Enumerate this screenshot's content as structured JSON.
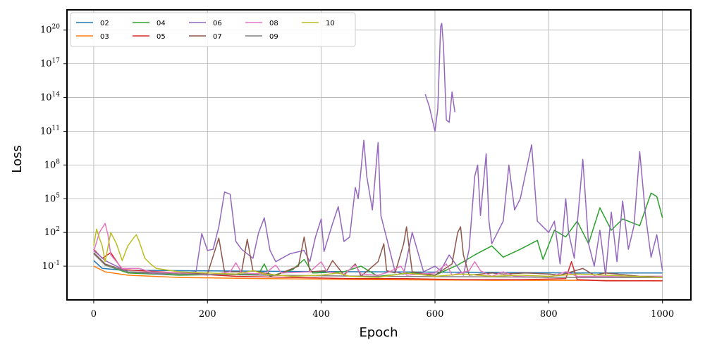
{
  "chart_data": {
    "type": "line",
    "xlabel": "Epoch",
    "ylabel": "Loss",
    "xlim": [
      -47,
      1050
    ],
    "yscale": "log",
    "ylim_log10": [
      -4.0,
      21.8
    ],
    "x_ticks": [
      0,
      200,
      400,
      600,
      800,
      1000
    ],
    "y_ticks": [
      {
        "exp": -1,
        "label": "10^{-1}"
      },
      {
        "exp": 2,
        "label": "10^{2}"
      },
      {
        "exp": 5,
        "label": "10^{5}"
      },
      {
        "exp": 8,
        "label": "10^{8}"
      },
      {
        "exp": 11,
        "label": "10^{11}"
      },
      {
        "exp": 14,
        "label": "10^{14}"
      },
      {
        "exp": 17,
        "label": "10^{17}"
      },
      {
        "exp": 20,
        "label": "10^{20}"
      }
    ],
    "grid": true,
    "legend": {
      "placement": "top-left",
      "columns": 5
    },
    "series": [
      {
        "name": "02",
        "color": "#1f77b4",
        "points": [
          [
            0,
            -0.5
          ],
          [
            15,
            -1.2
          ],
          [
            50,
            -1.35
          ],
          [
            150,
            -1.4
          ],
          [
            300,
            -1.45
          ],
          [
            500,
            -1.5
          ],
          [
            700,
            -1.55
          ],
          [
            850,
            -1.6
          ],
          [
            1000,
            -1.6
          ]
        ]
      },
      {
        "name": "03",
        "color": "#ff7f0e",
        "points": [
          [
            0,
            -1.0
          ],
          [
            20,
            -1.5
          ],
          [
            60,
            -1.8
          ],
          [
            150,
            -2.0
          ],
          [
            300,
            -2.1
          ],
          [
            500,
            -2.2
          ],
          [
            700,
            -2.25
          ],
          [
            850,
            -2.25
          ],
          [
            1000,
            -2.3
          ]
        ]
      },
      {
        "name": "04",
        "color": "#2ca02c",
        "points": [
          [
            0,
            0.2
          ],
          [
            20,
            -0.9
          ],
          [
            60,
            -1.6
          ],
          [
            150,
            -1.8
          ],
          [
            290,
            -1.7
          ],
          [
            300,
            -0.8
          ],
          [
            310,
            -1.9
          ],
          [
            350,
            -1.3
          ],
          [
            370,
            -0.4
          ],
          [
            385,
            -1.6
          ],
          [
            440,
            -1.5
          ],
          [
            470,
            -1.0
          ],
          [
            500,
            -1.9
          ],
          [
            560,
            -1.6
          ],
          [
            600,
            -1.8
          ],
          [
            640,
            -0.9
          ],
          [
            670,
            0.0
          ],
          [
            700,
            0.8
          ],
          [
            720,
            -0.2
          ],
          [
            750,
            0.5
          ],
          [
            780,
            1.3
          ],
          [
            790,
            -0.4
          ],
          [
            810,
            2.2
          ],
          [
            830,
            1.6
          ],
          [
            850,
            3.0
          ],
          [
            870,
            1.0
          ],
          [
            890,
            4.2
          ],
          [
            910,
            2.2
          ],
          [
            930,
            3.2
          ],
          [
            960,
            2.6
          ],
          [
            980,
            5.5
          ],
          [
            990,
            5.2
          ],
          [
            1000,
            3.3
          ]
        ]
      },
      {
        "name": "05",
        "color": "#d62728",
        "points": [
          [
            0,
            0.5
          ],
          [
            15,
            -0.3
          ],
          [
            30,
            0.2
          ],
          [
            50,
            -1.3
          ],
          [
            150,
            -1.6
          ],
          [
            250,
            -1.9
          ],
          [
            350,
            -2.0
          ],
          [
            450,
            -2.1
          ],
          [
            550,
            -2.1
          ],
          [
            650,
            -2.2
          ],
          [
            750,
            -2.2
          ],
          [
            830,
            -2.1
          ],
          [
            840,
            -0.6
          ],
          [
            850,
            -2.2
          ],
          [
            900,
            -2.3
          ],
          [
            1000,
            -2.3
          ]
        ]
      },
      {
        "name": "06",
        "color": "#9467bd",
        "points": [
          [
            0,
            0.4
          ],
          [
            20,
            -0.5
          ],
          [
            60,
            -1.5
          ],
          [
            120,
            -1.7
          ],
          [
            180,
            -1.5
          ],
          [
            190,
            1.9
          ],
          [
            200,
            0.4
          ],
          [
            210,
            0.5
          ],
          [
            220,
            2.5
          ],
          [
            230,
            5.6
          ],
          [
            240,
            5.4
          ],
          [
            250,
            1.2
          ],
          [
            260,
            0.5
          ],
          [
            280,
            -0.3
          ],
          [
            290,
            2.0
          ],
          [
            300,
            3.3
          ],
          [
            310,
            0.4
          ],
          [
            320,
            -0.6
          ],
          [
            345,
            0.1
          ],
          [
            370,
            0.4
          ],
          [
            380,
            -0.6
          ],
          [
            390,
            1.6
          ],
          [
            400,
            3.2
          ],
          [
            405,
            0.3
          ],
          [
            420,
            2.8
          ],
          [
            430,
            4.3
          ],
          [
            440,
            1.2
          ],
          [
            450,
            1.6
          ],
          [
            460,
            6.0
          ],
          [
            465,
            5.0
          ],
          [
            475,
            10.2
          ],
          [
            480,
            7.0
          ],
          [
            490,
            4.0
          ],
          [
            500,
            10.0
          ],
          [
            505,
            3.5
          ],
          [
            530,
            -1.5
          ],
          [
            545,
            -1.7
          ],
          [
            560,
            2.0
          ],
          [
            580,
            -1.5
          ],
          [
            600,
            -1.0
          ],
          [
            610,
            -1.4
          ],
          [
            625,
            0.0
          ],
          [
            650,
            -1.8
          ],
          [
            660,
            0.5
          ],
          [
            670,
            7.0
          ],
          [
            675,
            8.0
          ],
          [
            680,
            3.5
          ],
          [
            690,
            9.0
          ],
          [
            695,
            3.0
          ],
          [
            700,
            1.0
          ],
          [
            710,
            2.0
          ],
          [
            720,
            3.0
          ],
          [
            730,
            8.0
          ],
          [
            740,
            4.0
          ],
          [
            750,
            5.0
          ],
          [
            770,
            9.8
          ],
          [
            780,
            3.0
          ],
          [
            800,
            2.0
          ],
          [
            810,
            3.0
          ],
          [
            820,
            -0.8
          ],
          [
            830,
            5.0
          ],
          [
            835,
            2.0
          ],
          [
            845,
            -0.3
          ],
          [
            860,
            8.5
          ],
          [
            870,
            1.0
          ],
          [
            880,
            -1.0
          ],
          [
            890,
            2.2
          ],
          [
            900,
            -1.8
          ],
          [
            910,
            3.8
          ],
          [
            920,
            -0.6
          ],
          [
            930,
            4.8
          ],
          [
            940,
            0.5
          ],
          [
            950,
            2.6
          ],
          [
            960,
            9.2
          ],
          [
            970,
            3.6
          ],
          [
            980,
            -0.2
          ],
          [
            990,
            1.8
          ],
          [
            1000,
            -1.4
          ]
        ]
      },
      {
        "name": "06",
        "color": "#9467bd",
        "points": [
          [
            583,
            14.3
          ],
          [
            590,
            13.2
          ],
          [
            600,
            11.0
          ],
          [
            605,
            13.0
          ],
          [
            610,
            20.3
          ],
          [
            612,
            20.6
          ],
          [
            615,
            18.5
          ],
          [
            620,
            12.0
          ],
          [
            625,
            11.8
          ],
          [
            630,
            14.5
          ],
          [
            635,
            12.7
          ]
        ]
      },
      {
        "name": "07",
        "color": "#8c564b",
        "points": [
          [
            0,
            0.2
          ],
          [
            20,
            -0.8
          ],
          [
            60,
            -1.5
          ],
          [
            150,
            -1.6
          ],
          [
            200,
            -1.7
          ],
          [
            220,
            1.5
          ],
          [
            230,
            -1.5
          ],
          [
            260,
            -1.5
          ],
          [
            270,
            1.4
          ],
          [
            280,
            -1.4
          ],
          [
            320,
            -1.8
          ],
          [
            360,
            -1.0
          ],
          [
            370,
            1.6
          ],
          [
            380,
            -1.5
          ],
          [
            410,
            -1.4
          ],
          [
            420,
            -0.5
          ],
          [
            440,
            -1.8
          ],
          [
            460,
            -0.8
          ],
          [
            470,
            -1.9
          ],
          [
            500,
            -0.6
          ],
          [
            510,
            1.0
          ],
          [
            515,
            -1.4
          ],
          [
            530,
            -1.6
          ],
          [
            545,
            1.0
          ],
          [
            550,
            2.5
          ],
          [
            560,
            -1.5
          ],
          [
            600,
            -1.8
          ],
          [
            630,
            -0.8
          ],
          [
            640,
            2.0
          ],
          [
            645,
            2.5
          ],
          [
            650,
            0.0
          ],
          [
            660,
            -1.8
          ],
          [
            700,
            -1.6
          ],
          [
            720,
            -1.7
          ],
          [
            760,
            -1.6
          ],
          [
            800,
            -1.7
          ],
          [
            820,
            -1.8
          ],
          [
            860,
            -1.2
          ],
          [
            880,
            -1.8
          ],
          [
            900,
            -1.6
          ],
          [
            960,
            -1.9
          ],
          [
            1000,
            -1.9
          ]
        ]
      },
      {
        "name": "08",
        "color": "#e377c2",
        "points": [
          [
            0,
            0.3
          ],
          [
            10,
            2.0
          ],
          [
            20,
            2.8
          ],
          [
            25,
            1.8
          ],
          [
            30,
            0.0
          ],
          [
            50,
            -1.2
          ],
          [
            80,
            -1.2
          ],
          [
            100,
            -1.5
          ],
          [
            150,
            -1.6
          ],
          [
            200,
            -1.8
          ],
          [
            240,
            -1.5
          ],
          [
            250,
            -0.7
          ],
          [
            260,
            -1.6
          ],
          [
            300,
            -1.7
          ],
          [
            320,
            -0.9
          ],
          [
            330,
            -1.6
          ],
          [
            380,
            -1.5
          ],
          [
            400,
            -0.6
          ],
          [
            410,
            -1.5
          ],
          [
            440,
            -1.7
          ],
          [
            460,
            -0.9
          ],
          [
            470,
            -1.7
          ],
          [
            500,
            -1.8
          ],
          [
            520,
            -1.5
          ],
          [
            540,
            -1.0
          ],
          [
            550,
            -1.8
          ],
          [
            600,
            -1.6
          ],
          [
            620,
            -0.8
          ],
          [
            630,
            -1.8
          ],
          [
            660,
            -1.4
          ],
          [
            670,
            -0.6
          ],
          [
            680,
            -1.4
          ],
          [
            700,
            -1.9
          ],
          [
            720,
            -1.5
          ],
          [
            740,
            -1.9
          ],
          [
            800,
            -2.0
          ],
          [
            830,
            -1.5
          ],
          [
            850,
            -1.9
          ],
          [
            900,
            -1.9
          ],
          [
            960,
            -2.0
          ],
          [
            1000,
            -1.9
          ]
        ]
      },
      {
        "name": "09",
        "color": "#7f7f7f",
        "points": [
          [
            0,
            0.1
          ],
          [
            20,
            -0.9
          ],
          [
            60,
            -1.5
          ],
          [
            150,
            -1.7
          ],
          [
            300,
            -1.8
          ],
          [
            500,
            -1.9
          ],
          [
            700,
            -1.95
          ],
          [
            850,
            -2.0
          ],
          [
            1000,
            -2.0
          ]
        ]
      },
      {
        "name": "10",
        "color": "#bcbd22",
        "points": [
          [
            0,
            0.8
          ],
          [
            5,
            2.3
          ],
          [
            10,
            1.5
          ],
          [
            15,
            0.8
          ],
          [
            20,
            -0.6
          ],
          [
            30,
            2.0
          ],
          [
            40,
            1.0
          ],
          [
            50,
            -0.5
          ],
          [
            60,
            0.8
          ],
          [
            70,
            1.5
          ],
          [
            75,
            1.8
          ],
          [
            80,
            1.2
          ],
          [
            90,
            -0.3
          ],
          [
            100,
            -0.8
          ],
          [
            110,
            -1.2
          ],
          [
            150,
            -1.5
          ],
          [
            200,
            -1.6
          ],
          [
            250,
            -1.7
          ],
          [
            280,
            -1.4
          ],
          [
            300,
            -1.7
          ],
          [
            350,
            -1.9
          ],
          [
            400,
            -1.8
          ],
          [
            430,
            -1.6
          ],
          [
            450,
            -1.9
          ],
          [
            500,
            -2.0
          ],
          [
            550,
            -1.6
          ],
          [
            600,
            -1.9
          ],
          [
            650,
            -1.7
          ],
          [
            700,
            -1.9
          ],
          [
            750,
            -1.8
          ],
          [
            800,
            -1.9
          ],
          [
            850,
            -1.7
          ],
          [
            900,
            -1.8
          ],
          [
            950,
            -1.9
          ],
          [
            1000,
            -2.0
          ]
        ]
      }
    ]
  }
}
